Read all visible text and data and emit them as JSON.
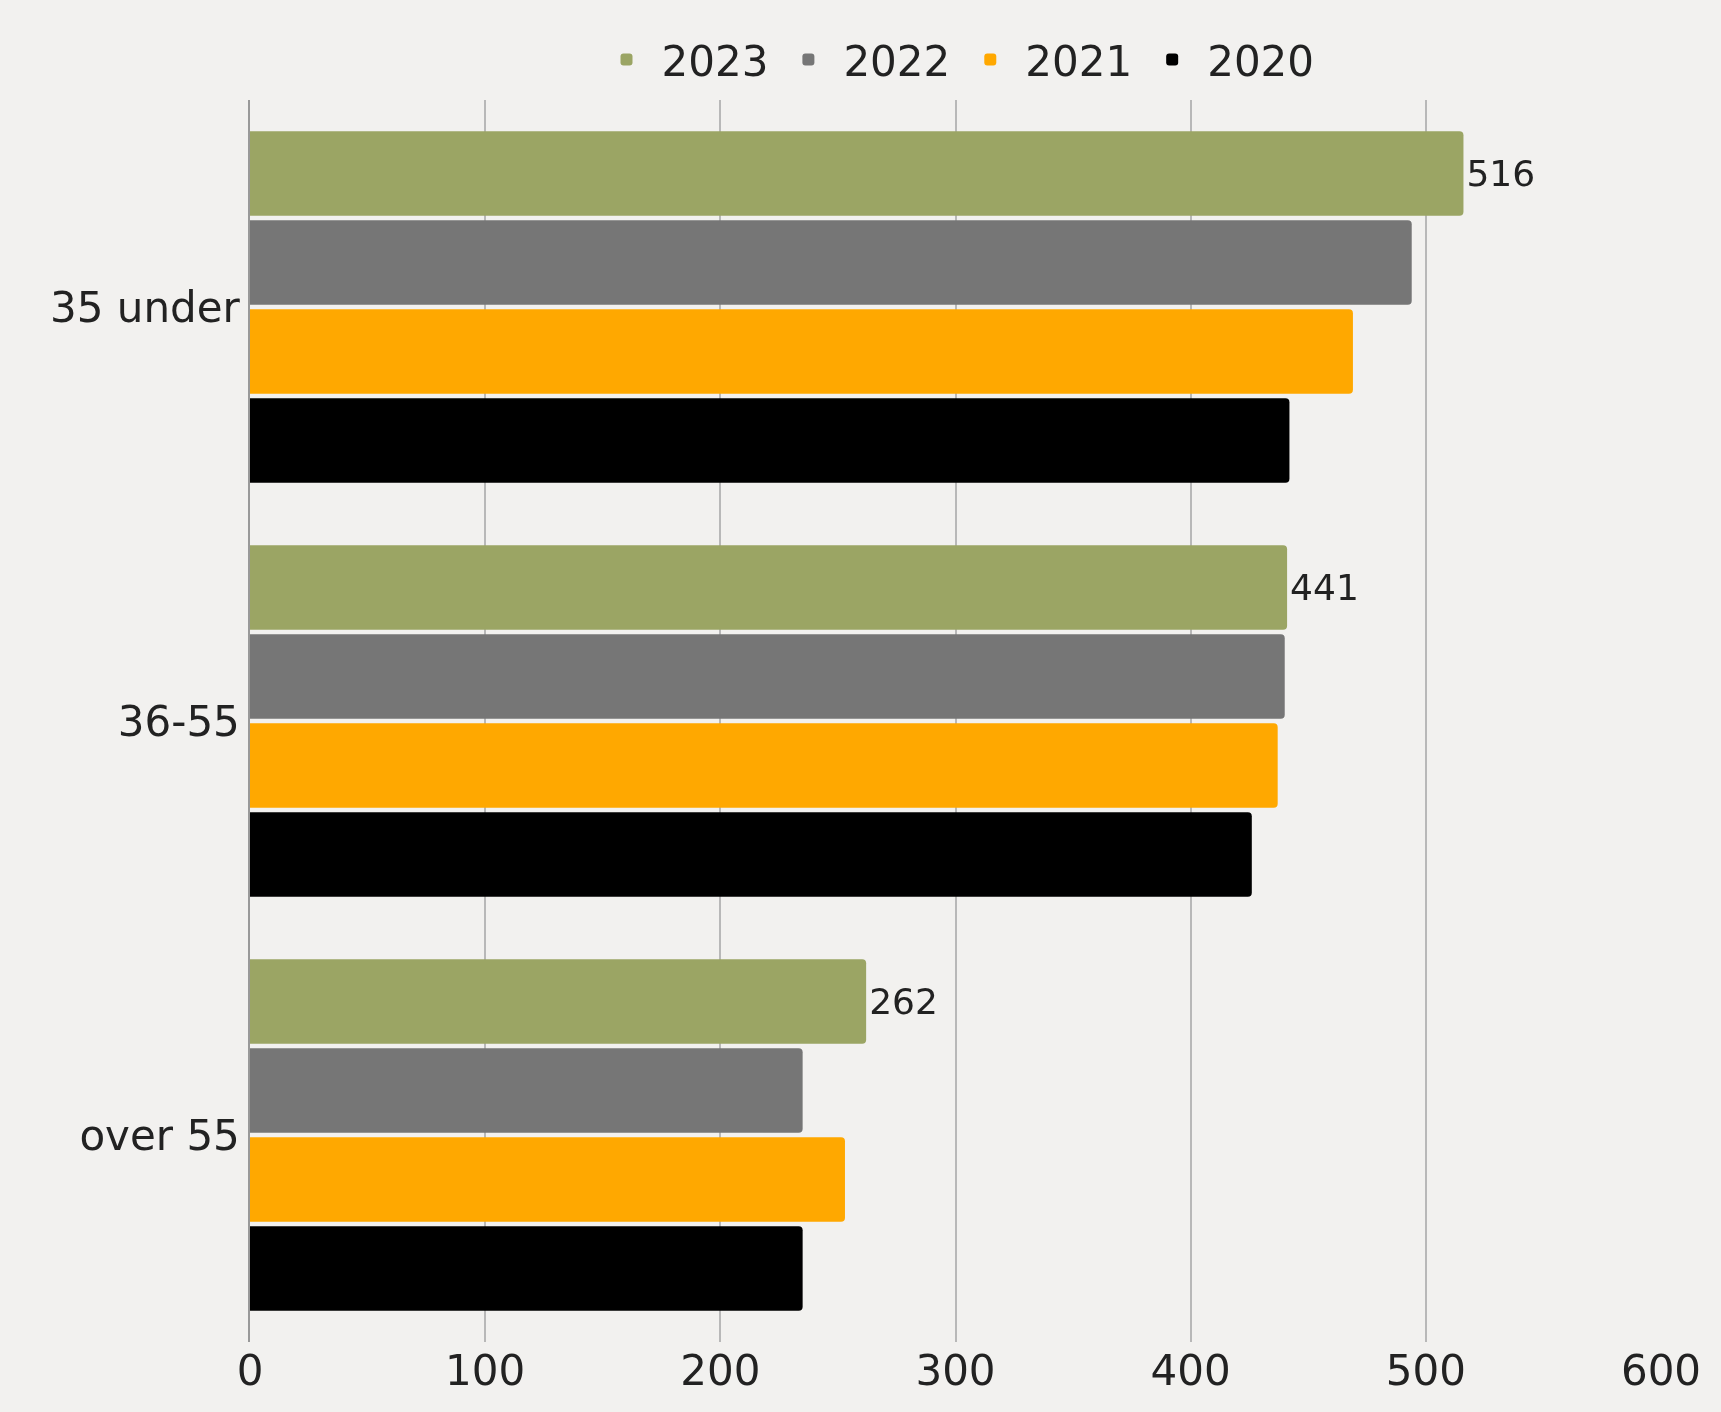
{
  "chart_data": {
    "type": "bar",
    "orientation": "horizontal",
    "categories": [
      "35 under",
      "36-55",
      "over 55"
    ],
    "series": [
      {
        "name": "2023",
        "color": "#9ba564",
        "values": [
          516,
          441,
          262
        ],
        "value_labels": [
          "516",
          "441",
          "262"
        ]
      },
      {
        "name": "2022",
        "color": "#767676",
        "values": [
          494,
          440,
          235
        ]
      },
      {
        "name": "2021",
        "color": "#ffa800",
        "values": [
          469,
          437,
          253
        ]
      },
      {
        "name": "2020",
        "color": "#000000",
        "values": [
          442,
          426,
          235
        ]
      }
    ],
    "xlim": [
      0,
      600
    ],
    "xticks": [
      0,
      100,
      200,
      300,
      400,
      500,
      600
    ],
    "grid": "x",
    "legend": "top"
  }
}
